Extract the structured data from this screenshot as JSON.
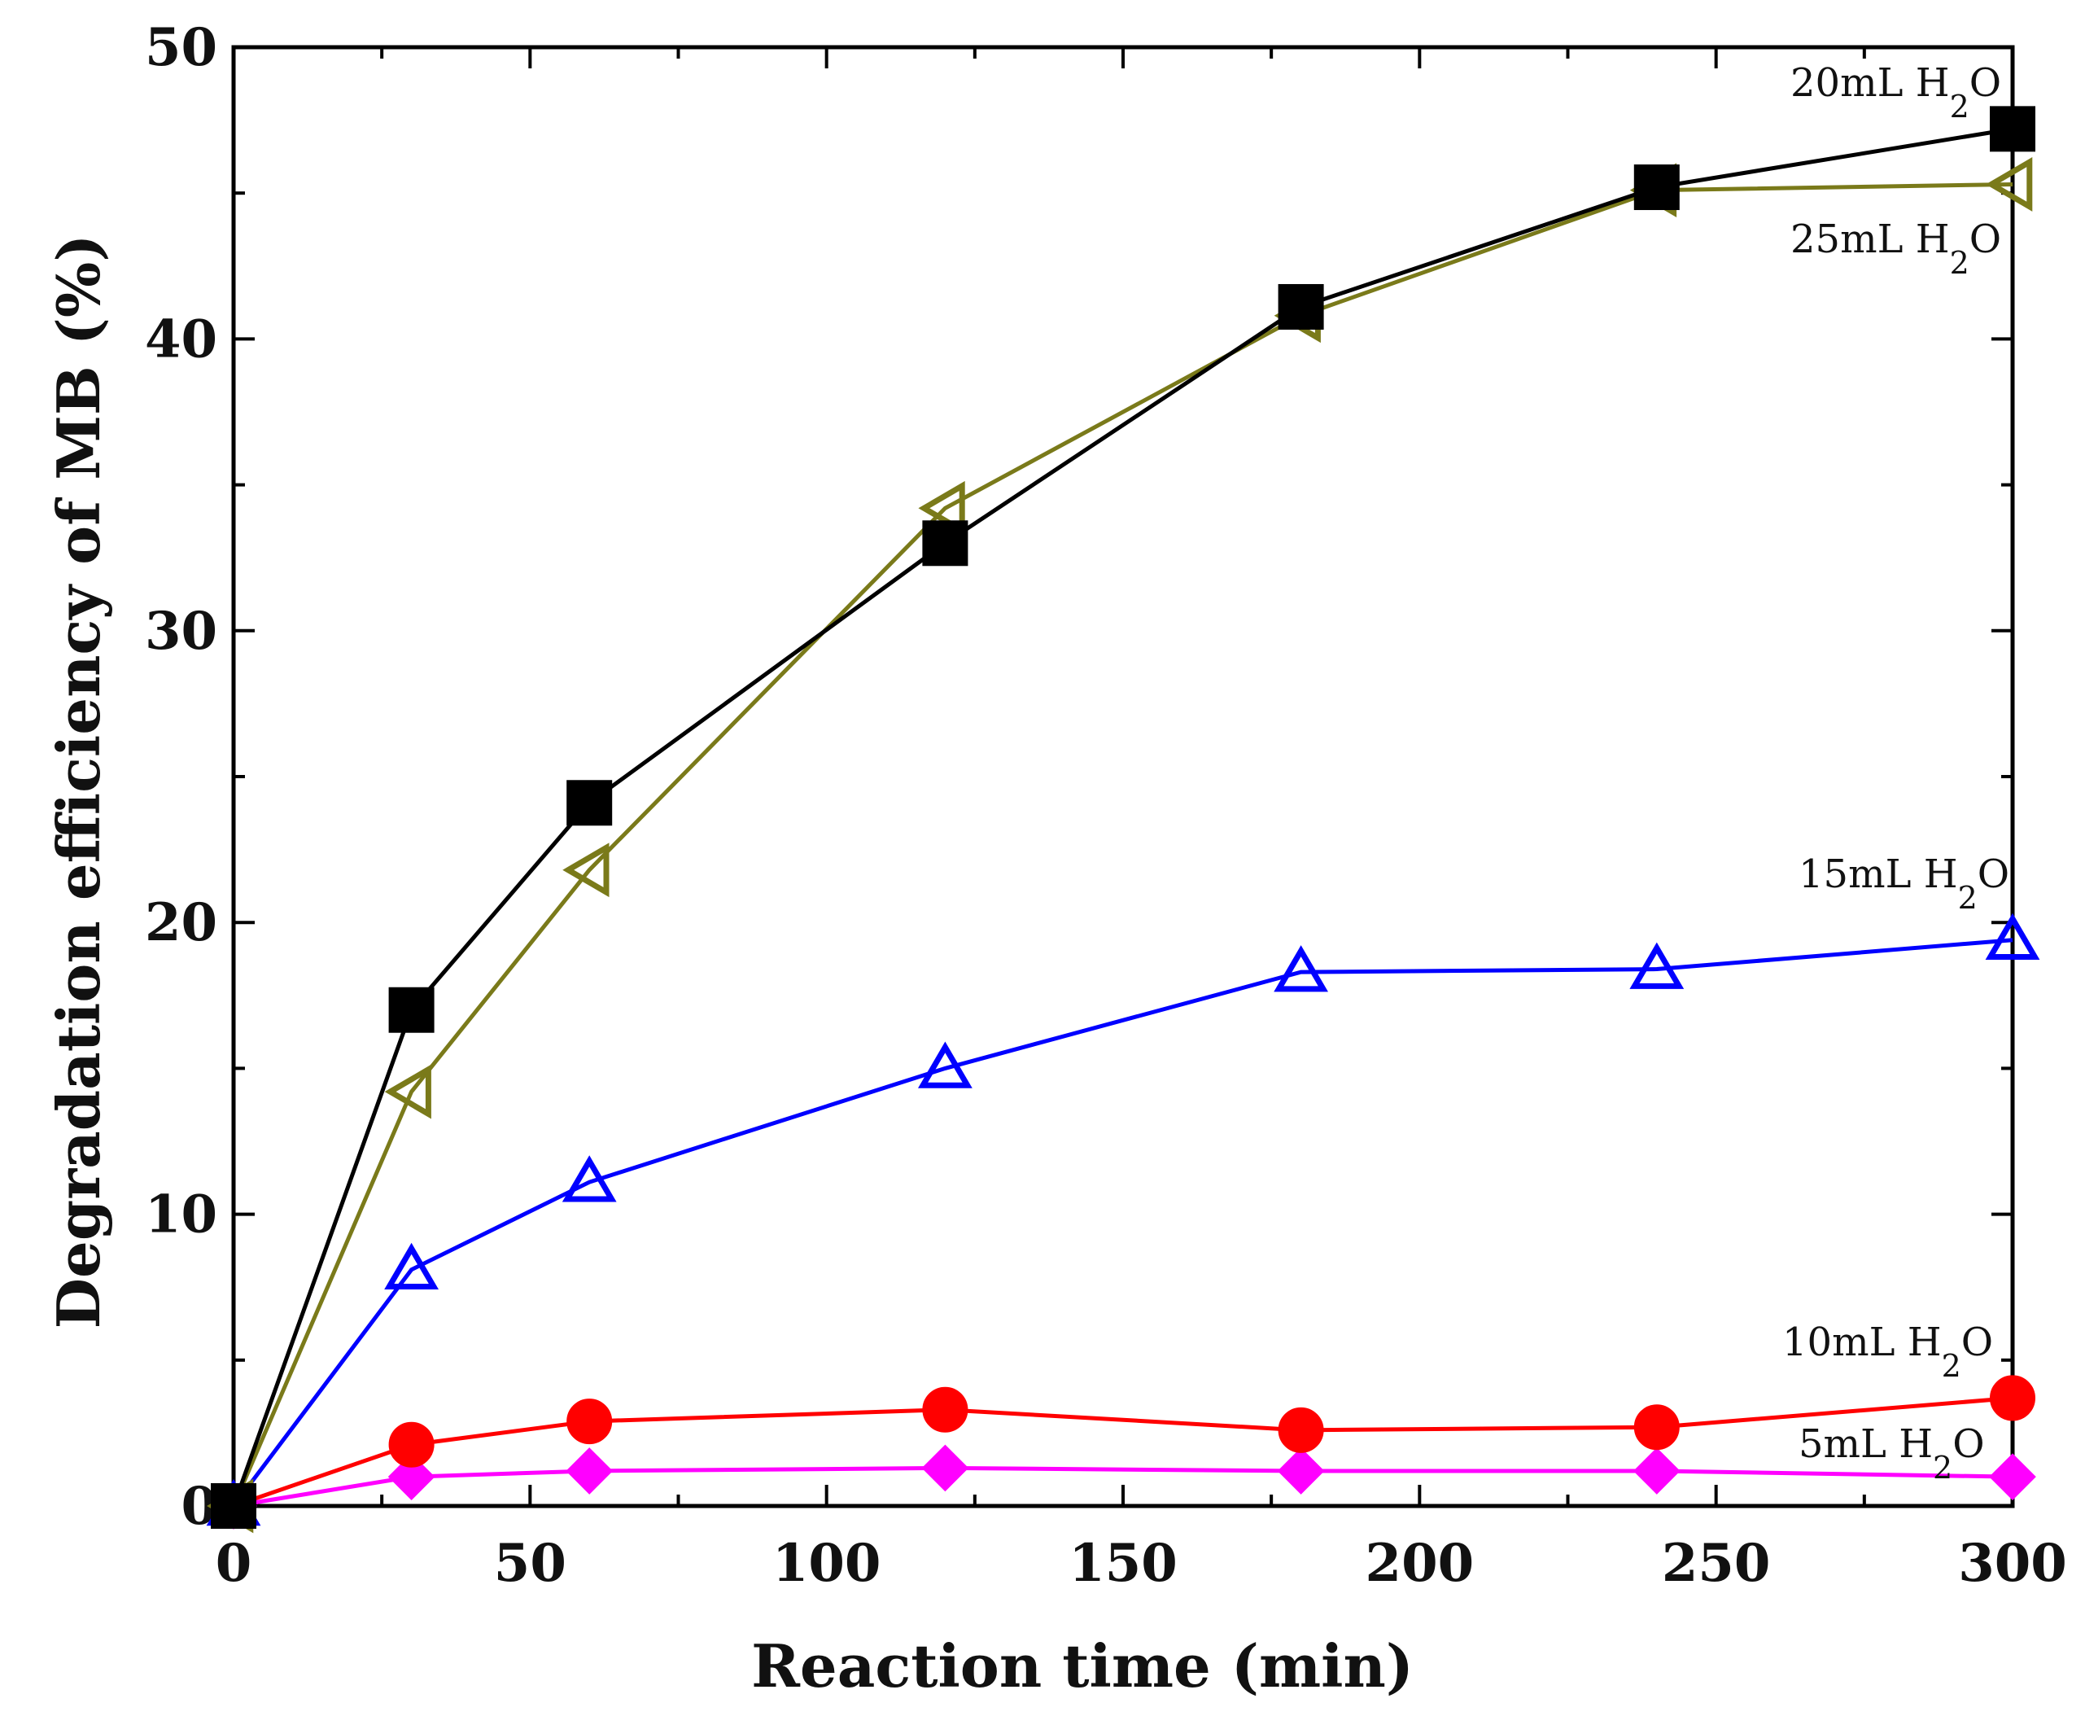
{
  "chart_data": {
    "type": "line",
    "title": "",
    "xlabel": "Reaction time (min)",
    "ylabel": "Degradation efficiency of MB (%)",
    "xlim": [
      0,
      300
    ],
    "ylim": [
      0,
      50
    ],
    "xticks": [
      0,
      50,
      100,
      150,
      200,
      250,
      300
    ],
    "yticks": [
      0,
      10,
      20,
      30,
      40,
      50
    ],
    "grid": false,
    "x": [
      0,
      30,
      60,
      120,
      180,
      240,
      300
    ],
    "series": [
      {
        "name": "20mL H2O",
        "label_main": "20mL H",
        "label_sub": "2",
        "label_tail": "O",
        "color": "#000000",
        "marker": "square",
        "values": [
          0,
          17.0,
          24.1,
          33.0,
          41.1,
          45.2,
          47.2
        ]
      },
      {
        "name": "25mL H2O",
        "label_main": "25mL H",
        "label_sub": "2",
        "label_tail": "O",
        "color": "#7a7a1a",
        "marker": "triangle-left",
        "values": [
          0,
          14.2,
          21.8,
          34.2,
          40.8,
          45.1,
          45.3
        ]
      },
      {
        "name": "15mL H2O",
        "label_main": "15mL H",
        "label_sub": "2",
        "label_tail": "O",
        "color": "#0000ff",
        "marker": "triangle-up",
        "values": [
          0,
          8.1,
          11.1,
          15.0,
          18.3,
          18.4,
          19.4
        ]
      },
      {
        "name": "10mL H2O",
        "label_main": "10mL H",
        "label_sub": "2",
        "label_tail": "O",
        "color": "#ff0000",
        "marker": "circle",
        "values": [
          0,
          2.1,
          2.9,
          3.3,
          2.6,
          2.7,
          3.7
        ]
      },
      {
        "name": "5mL H2O",
        "label_main": "5mL H",
        "label_sub": "2",
        "label_tail": "O",
        "color": "#ff00ff",
        "marker": "diamond",
        "values": [
          0,
          1.0,
          1.2,
          1.3,
          1.2,
          1.2,
          1.0
        ]
      }
    ]
  }
}
